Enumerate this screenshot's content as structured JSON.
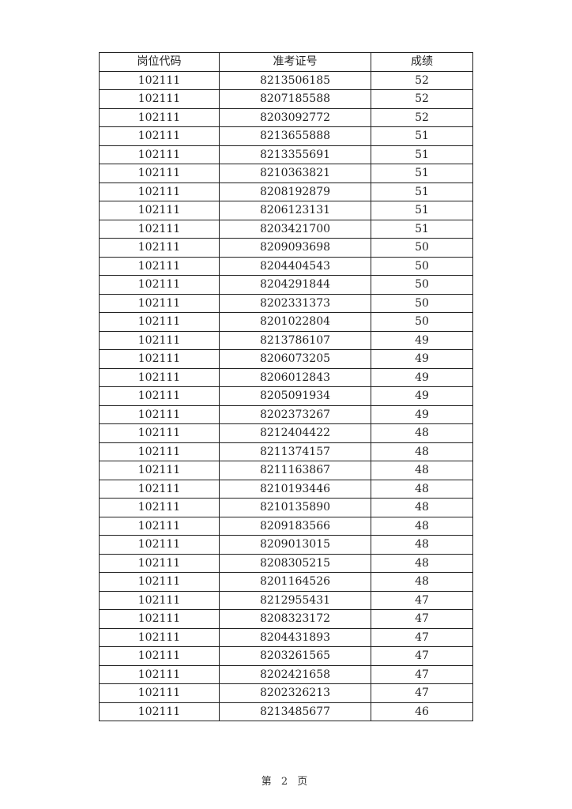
{
  "table": {
    "headers": [
      "岗位代码",
      "准考证号",
      "成绩"
    ],
    "rows": [
      [
        "102111",
        "8213506185",
        "52"
      ],
      [
        "102111",
        "8207185588",
        "52"
      ],
      [
        "102111",
        "8203092772",
        "52"
      ],
      [
        "102111",
        "8213655888",
        "51"
      ],
      [
        "102111",
        "8213355691",
        "51"
      ],
      [
        "102111",
        "8210363821",
        "51"
      ],
      [
        "102111",
        "8208192879",
        "51"
      ],
      [
        "102111",
        "8206123131",
        "51"
      ],
      [
        "102111",
        "8203421700",
        "51"
      ],
      [
        "102111",
        "8209093698",
        "50"
      ],
      [
        "102111",
        "8204404543",
        "50"
      ],
      [
        "102111",
        "8204291844",
        "50"
      ],
      [
        "102111",
        "8202331373",
        "50"
      ],
      [
        "102111",
        "8201022804",
        "50"
      ],
      [
        "102111",
        "8213786107",
        "49"
      ],
      [
        "102111",
        "8206073205",
        "49"
      ],
      [
        "102111",
        "8206012843",
        "49"
      ],
      [
        "102111",
        "8205091934",
        "49"
      ],
      [
        "102111",
        "8202373267",
        "49"
      ],
      [
        "102111",
        "8212404422",
        "48"
      ],
      [
        "102111",
        "8211374157",
        "48"
      ],
      [
        "102111",
        "8211163867",
        "48"
      ],
      [
        "102111",
        "8210193446",
        "48"
      ],
      [
        "102111",
        "8210135890",
        "48"
      ],
      [
        "102111",
        "8209183566",
        "48"
      ],
      [
        "102111",
        "8209013015",
        "48"
      ],
      [
        "102111",
        "8208305215",
        "48"
      ],
      [
        "102111",
        "8201164526",
        "48"
      ],
      [
        "102111",
        "8212955431",
        "47"
      ],
      [
        "102111",
        "8208323172",
        "47"
      ],
      [
        "102111",
        "8204431893",
        "47"
      ],
      [
        "102111",
        "8203261565",
        "47"
      ],
      [
        "102111",
        "8202421658",
        "47"
      ],
      [
        "102111",
        "8202326213",
        "47"
      ],
      [
        "102111",
        "8213485677",
        "46"
      ]
    ]
  },
  "footer": {
    "page_label": "第 2 页"
  }
}
